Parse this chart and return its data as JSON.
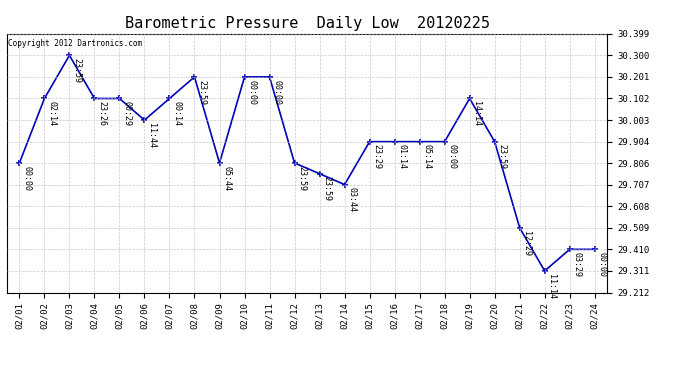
{
  "title": "Barometric Pressure  Daily Low  20120225",
  "copyright": "Copyright 2012 Dartronics.com",
  "x_labels": [
    "02/01",
    "02/02",
    "02/03",
    "02/04",
    "02/05",
    "02/06",
    "02/07",
    "02/08",
    "02/09",
    "02/10",
    "02/11",
    "02/12",
    "02/13",
    "02/14",
    "02/15",
    "02/16",
    "02/17",
    "02/18",
    "02/19",
    "02/20",
    "02/21",
    "02/22",
    "02/23",
    "02/24"
  ],
  "y_values": [
    29.806,
    30.102,
    30.3,
    30.102,
    30.102,
    30.003,
    30.102,
    30.201,
    29.806,
    30.201,
    30.201,
    29.806,
    29.757,
    29.707,
    29.904,
    29.904,
    29.904,
    29.904,
    30.102,
    29.904,
    29.509,
    29.311,
    29.41,
    29.41
  ],
  "point_labels": [
    "00:00",
    "02:14",
    "23:59",
    "23:26",
    "00:29",
    "11:44",
    "00:14",
    "23:59",
    "05:44",
    "00:00",
    "00:00",
    "23:59",
    "23:59",
    "03:44",
    "23:29",
    "01:14",
    "05:14",
    "00:00",
    "14:14",
    "23:59",
    "12:29",
    "11:14",
    "03:29",
    "00:00"
  ],
  "ylim_min": 29.212,
  "ylim_max": 30.399,
  "yticks": [
    29.212,
    29.311,
    29.41,
    29.509,
    29.608,
    29.707,
    29.806,
    29.904,
    30.003,
    30.102,
    30.201,
    30.3,
    30.399
  ],
  "line_color": "#0000bb",
  "bg_color": "#ffffff",
  "grid_color": "#bbbbbb",
  "title_fontsize": 11,
  "annot_fontsize": 6,
  "tick_fontsize": 6.5
}
